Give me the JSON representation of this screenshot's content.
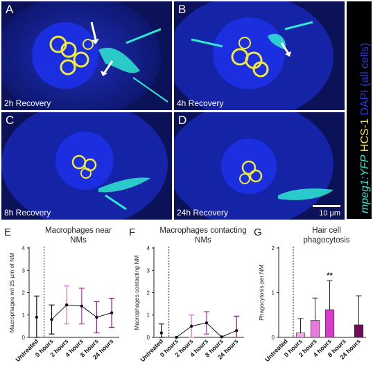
{
  "panels": [
    {
      "letter": "A",
      "caption": "2h Recovery"
    },
    {
      "letter": "B",
      "caption": "4h Recovery"
    },
    {
      "letter": "C",
      "caption": "8h Recovery"
    },
    {
      "letter": "D",
      "caption": "24h Recovery"
    }
  ],
  "scale_bar": "10 µm",
  "side_label": {
    "part1": "mpeg1:YFP",
    "part2": " HCS-1",
    "part3": " DAPI (all cells)"
  },
  "colors": {
    "dapi": "#1a2bd6",
    "yfp": "#2ee8d0",
    "hcs1": "#f2ea3a",
    "magenta": "#c22bb0"
  },
  "chart_data": [
    {
      "panel": "E",
      "type": "line",
      "title": "Macrophages near NMs",
      "ylabel": "Macrophages w/i 25 µm of NM",
      "categories": [
        "Untreated",
        "0 hours",
        "2 hours",
        "4 hours",
        "8 hours",
        "24 hours"
      ],
      "ylim": [
        0,
        4
      ],
      "yticks": [
        "0",
        "1",
        "2",
        "3",
        "4"
      ],
      "series": [
        {
          "values": [
            0.9,
            0.8,
            1.45,
            1.4,
            0.9,
            1.1
          ],
          "errors": [
            0.95,
            0.65,
            0.85,
            0.8,
            0.7,
            0.65
          ]
        }
      ]
    },
    {
      "panel": "F",
      "type": "line",
      "title": "Macrophages contacting NMs",
      "ylabel": "Macrophages contacting NM",
      "categories": [
        "Untreated",
        "0 hours",
        "2 hours",
        "4 hours",
        "8 hours",
        "24 hours"
      ],
      "ylim": [
        0,
        4
      ],
      "yticks": [
        "0",
        "1",
        "2",
        "3",
        "4"
      ],
      "series": [
        {
          "values": [
            0.2,
            0.0,
            0.5,
            0.65,
            0.02,
            0.3
          ],
          "errors": [
            0.4,
            0.0,
            0.5,
            0.5,
            0.0,
            0.65
          ]
        }
      ]
    },
    {
      "panel": "G",
      "type": "bar",
      "title": "Hair cell phagocytosis",
      "ylabel": "Phagocytosis per NM",
      "categories": [
        "Untreated",
        "0 hours",
        "2 hours",
        "4 hours",
        "8 hours",
        "24 hours"
      ],
      "ylim": [
        0,
        2
      ],
      "yticks": [
        "0",
        "1",
        "2"
      ],
      "annotation": "**",
      "series": [
        {
          "values": [
            0,
            0.1,
            0.38,
            0.62,
            0,
            0.28
          ],
          "errors": [
            0,
            0.32,
            0.5,
            0.65,
            0,
            0.65
          ]
        }
      ]
    }
  ]
}
